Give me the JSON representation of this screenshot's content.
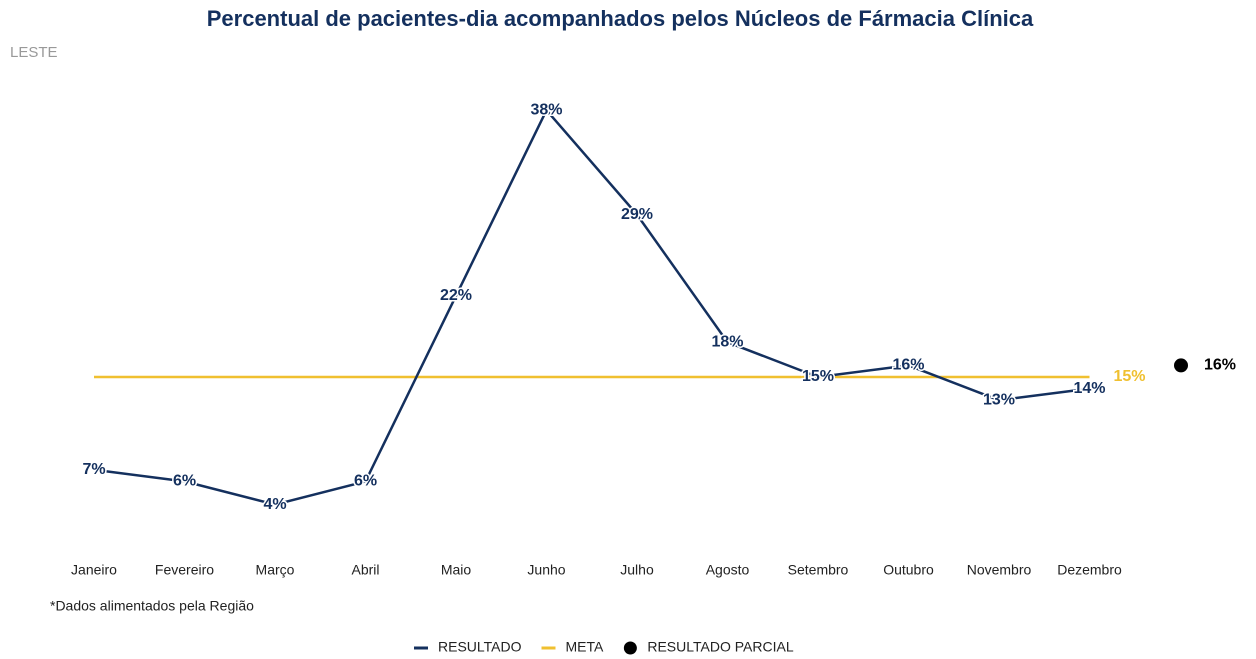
{
  "chart_data": {
    "type": "line",
    "title": "Percentual de pacientes-dia acompanhados pelos Núcleos de Fármacia Clínica",
    "subtitle": "LESTE",
    "note": "*Dados alimentados pela Região",
    "categories": [
      "Janeiro",
      "Fevereiro",
      "Março",
      "Abril",
      "Maio",
      "Junho",
      "Julho",
      "Agosto",
      "Setembro",
      "Outubro",
      "Novembro",
      "Dezembro"
    ],
    "series": [
      {
        "name": "RESULTADO",
        "color": "#14305e",
        "values": [
          7,
          6,
          4,
          6,
          22,
          38,
          29,
          18,
          15,
          16,
          13,
          14
        ],
        "value_labels": [
          "7%",
          "6%",
          "4%",
          "6%",
          "22%",
          "38%",
          "29%",
          "18%",
          "15%",
          "16%",
          "13%",
          "14%"
        ]
      }
    ],
    "meta": {
      "name": "META",
      "color": "#f0c030",
      "value": 15,
      "value_label": "15%"
    },
    "partial": {
      "name": "RESULTADO PARCIAL",
      "color": "#000000",
      "value": 16,
      "value_label": "16%"
    },
    "ylim": [
      0,
      40
    ]
  }
}
